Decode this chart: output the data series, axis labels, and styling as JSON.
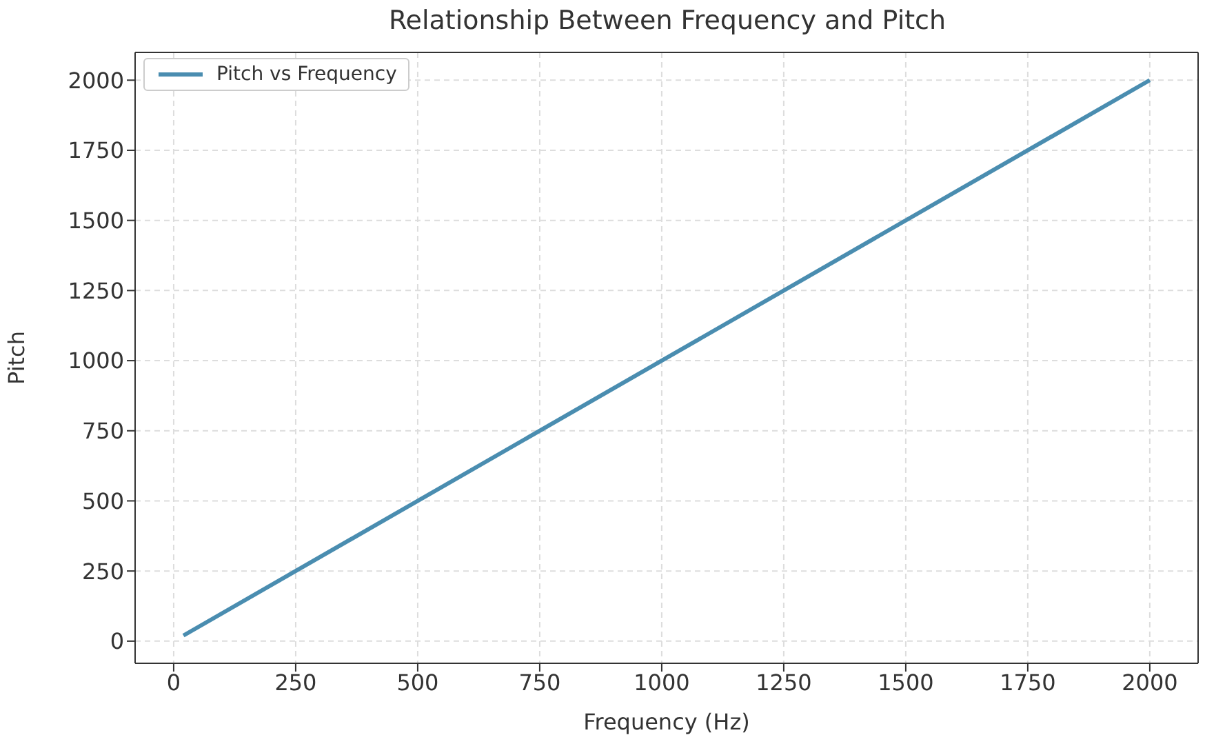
{
  "chart_data": {
    "type": "line",
    "title": "Relationship Between Frequency and Pitch",
    "xlabel": "Frequency (Hz)",
    "ylabel": "Pitch",
    "x": [
      20,
      2000
    ],
    "series": [
      {
        "name": "Pitch vs Frequency",
        "color": "#4a8db0",
        "values": [
          20,
          2000
        ]
      }
    ],
    "xlim": [
      -79,
      2099
    ],
    "ylim": [
      -79,
      2099
    ],
    "xticks": [
      0,
      250,
      500,
      750,
      1000,
      1250,
      1500,
      1750,
      2000
    ],
    "yticks": [
      0,
      250,
      500,
      750,
      1000,
      1250,
      1500,
      1750,
      2000
    ],
    "grid": true,
    "legend": "top left",
    "line_style": "solid",
    "marker": "none"
  }
}
